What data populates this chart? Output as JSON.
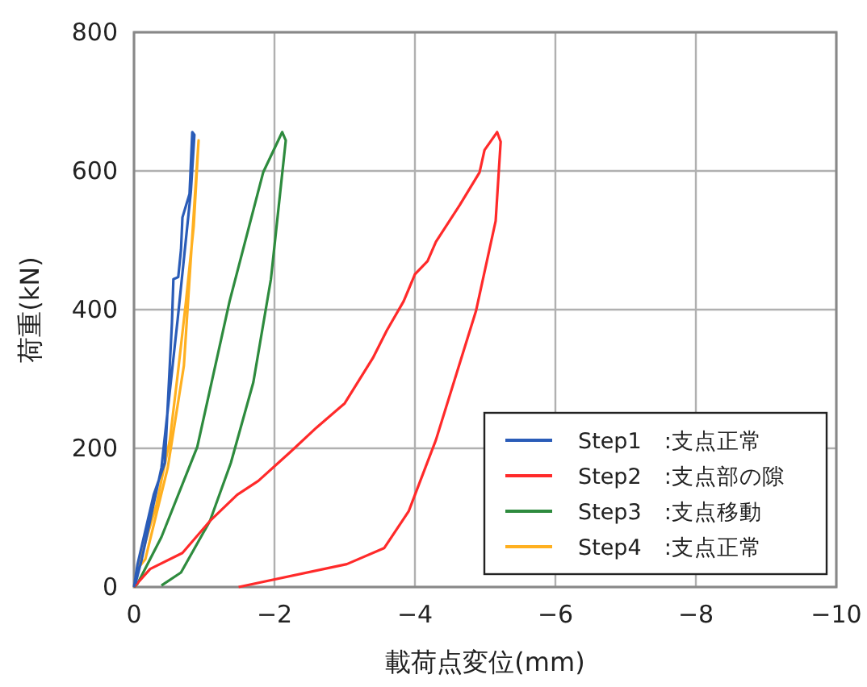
{
  "chart_data": {
    "type": "line",
    "xlabel": "載荷点変位(mm)",
    "ylabel": "荷重(kN)",
    "xlim": [
      0,
      -10
    ],
    "ylim": [
      0,
      800
    ],
    "xticks": [
      0,
      {
        "value": -2,
        "label": "−2"
      },
      {
        "value": -4,
        "label": "−4"
      },
      {
        "value": -6,
        "label": "−6"
      },
      {
        "value": -8,
        "label": "−8"
      },
      {
        "value": -10,
        "label": "−10"
      }
    ],
    "yticks": [
      0,
      200,
      400,
      600,
      800
    ],
    "grid": true,
    "legend": "bottom right",
    "series": [
      {
        "name": "Step1　:支点正常",
        "color": "#2a5cb8",
        "x": [
          0,
          -0.05,
          -0.28,
          -0.44,
          -0.54,
          -0.56,
          -0.63,
          -0.67,
          -0.69,
          -0.79,
          -0.83,
          -0.86,
          -0.81,
          -0.62,
          -0.39,
          -0.11,
          -0.02
        ],
        "values": [
          0,
          33,
          133,
          179,
          381,
          444,
          447,
          486,
          533,
          567,
          656,
          652,
          570,
          385,
          172,
          40,
          5
        ]
      },
      {
        "name": "Step2　:支点部の隙",
        "color": "#ff2a2a",
        "x": [
          0,
          -0.23,
          -0.69,
          -1.08,
          -1.47,
          -1.77,
          -2.23,
          -2.6,
          -3.0,
          -3.4,
          -3.6,
          -3.84,
          -4.0,
          -4.18,
          -4.3,
          -4.64,
          -4.92,
          -4.99,
          -5.17,
          -5.22,
          -5.15,
          -4.87,
          -4.3,
          -3.91,
          -3.56,
          -3.03,
          -1.49
        ],
        "values": [
          0,
          26,
          49,
          95,
          133,
          153,
          195,
          230,
          265,
          330,
          370,
          412,
          451,
          470,
          498,
          551,
          598,
          630,
          656,
          642,
          528,
          398,
          212,
          109,
          56,
          33,
          0
        ]
      },
      {
        "name": "Step3　:支点移動",
        "color": "#2e8b3e",
        "x": [
          0,
          -0.05,
          -0.39,
          -0.9,
          -1.36,
          -1.84,
          -2.11,
          -2.16,
          -1.95,
          -1.7,
          -1.38,
          -1.08,
          -0.67,
          -0.39
        ],
        "values": [
          0,
          5,
          72,
          202,
          412,
          598,
          656,
          644,
          444,
          295,
          179,
          95,
          21,
          2
        ]
      },
      {
        "name": "Step4　:支点正常",
        "color": "#ffb020",
        "x": [
          0,
          -0.05,
          -0.32,
          -0.51,
          -0.62,
          -0.74,
          -0.85,
          -0.92,
          -0.87,
          -0.71,
          -0.48,
          -0.16,
          -0.05
        ],
        "values": [
          0,
          26,
          119,
          212,
          305,
          412,
          521,
          644,
          567,
          319,
          172,
          40,
          26
        ]
      }
    ]
  }
}
